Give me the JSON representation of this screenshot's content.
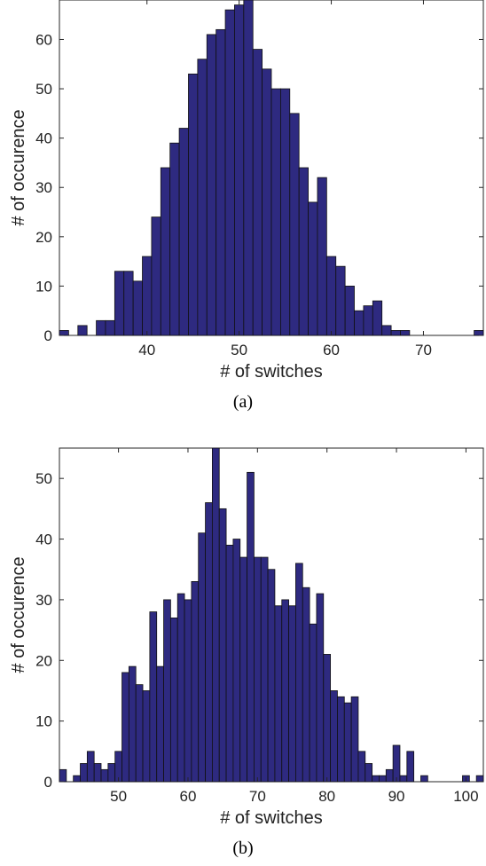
{
  "chart_data": [
    {
      "type": "bar",
      "caption": "(a)",
      "xlabel": "# of switches",
      "ylabel": "# of occurence",
      "xlim": [
        30.5,
        76.5
      ],
      "ylim": [
        0,
        68
      ],
      "xticks": [
        40,
        50,
        60,
        70
      ],
      "yticks": [
        0,
        10,
        20,
        30,
        40,
        50,
        60
      ],
      "bar_color": "#2e2a80",
      "x": [
        31,
        32,
        33,
        34,
        35,
        36,
        37,
        38,
        39,
        40,
        41,
        42,
        43,
        44,
        45,
        46,
        47,
        48,
        49,
        50,
        51,
        52,
        53,
        54,
        55,
        56,
        57,
        58,
        59,
        60,
        61,
        62,
        63,
        64,
        65,
        66,
        67,
        68,
        69,
        70,
        71,
        72,
        73,
        74,
        75,
        76
      ],
      "values": [
        1,
        0,
        2,
        0,
        3,
        3,
        13,
        13,
        11,
        16,
        24,
        34,
        39,
        42,
        53,
        56,
        61,
        62,
        66,
        67,
        68,
        58,
        54,
        50,
        50,
        45,
        34,
        27,
        32,
        16,
        14,
        10,
        5,
        6,
        7,
        2,
        1,
        1,
        0,
        0,
        0,
        0,
        0,
        0,
        0,
        1
      ]
    },
    {
      "type": "bar",
      "caption": "(b)",
      "xlabel": "# of switches",
      "ylabel": "# of occurence",
      "xlim": [
        41.5,
        102.5
      ],
      "ylim": [
        0,
        55
      ],
      "xticks": [
        50,
        60,
        70,
        80,
        90,
        100
      ],
      "yticks": [
        0,
        10,
        20,
        30,
        40,
        50
      ],
      "bar_color": "#2e2a80",
      "x": [
        42,
        43,
        44,
        45,
        46,
        47,
        48,
        49,
        50,
        51,
        52,
        53,
        54,
        55,
        56,
        57,
        58,
        59,
        60,
        61,
        62,
        63,
        64,
        65,
        66,
        67,
        68,
        69,
        70,
        71,
        72,
        73,
        74,
        75,
        76,
        77,
        78,
        79,
        80,
        81,
        82,
        83,
        84,
        85,
        86,
        87,
        88,
        89,
        90,
        91,
        92,
        93,
        94,
        95,
        96,
        97,
        98,
        99,
        100,
        101,
        102
      ],
      "values": [
        2,
        0,
        1,
        3,
        5,
        3,
        2,
        3,
        5,
        18,
        19,
        16,
        15,
        28,
        19,
        30,
        27,
        31,
        30,
        33,
        41,
        46,
        55,
        45,
        39,
        40,
        37,
        51,
        37,
        37,
        35,
        29,
        30,
        29,
        36,
        32,
        26,
        31,
        21,
        15,
        14,
        13,
        14,
        5,
        3,
        1,
        1,
        2,
        6,
        1,
        5,
        0,
        1,
        0,
        0,
        0,
        0,
        0,
        1,
        0,
        1
      ]
    }
  ]
}
